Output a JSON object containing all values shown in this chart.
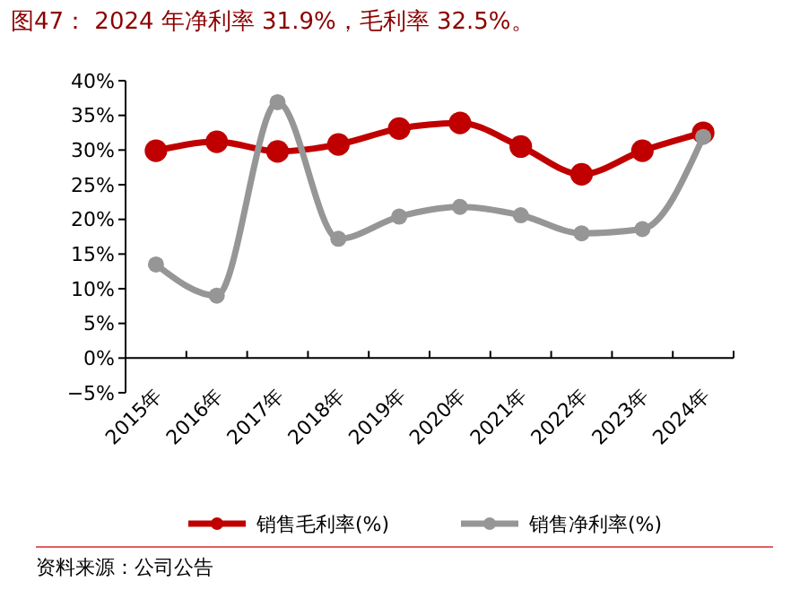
{
  "chart_data": {
    "type": "line",
    "title": "图47： 2024 年净利率 31.9%，毛利率 32.5%。",
    "categories": [
      "2015年",
      "2016年",
      "2017年",
      "2018年",
      "2019年",
      "2020年",
      "2021年",
      "2022年",
      "2023年",
      "2024年"
    ],
    "series": [
      {
        "name": "销售毛利率(%)",
        "color": "#c00000",
        "values": [
          29.9,
          31.2,
          29.8,
          30.8,
          33.1,
          33.9,
          30.5,
          26.5,
          29.9,
          32.5
        ]
      },
      {
        "name": "销售净利率(%)",
        "color": "#969696",
        "values": [
          13.5,
          9.0,
          36.9,
          17.2,
          20.4,
          21.8,
          20.6,
          18.0,
          18.6,
          31.9
        ]
      }
    ],
    "ylim": [
      -5,
      40
    ],
    "yticks": [
      {
        "value": -5,
        "label": "−5%"
      },
      {
        "value": 0,
        "label": "0%"
      },
      {
        "value": 5,
        "label": "5%"
      },
      {
        "value": 10,
        "label": "10%"
      },
      {
        "value": 15,
        "label": "15%"
      },
      {
        "value": 20,
        "label": "20%"
      },
      {
        "value": 25,
        "label": "25%"
      },
      {
        "value": 30,
        "label": "30%"
      },
      {
        "value": 35,
        "label": "35%"
      },
      {
        "value": 40,
        "label": "40%"
      }
    ],
    "marker": "circle",
    "line_style": "solid",
    "grid": false,
    "legend": "bottom",
    "annotations": [
      "资料来源：公司公告"
    ]
  }
}
